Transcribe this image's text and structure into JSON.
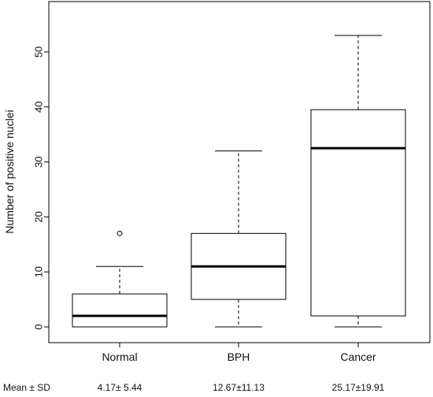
{
  "chart_data": {
    "type": "boxplot",
    "title": "",
    "xlabel": "",
    "ylabel": "Number of positive nuclei",
    "ylim": [
      -2,
      55
    ],
    "yticks": [
      0,
      10,
      20,
      30,
      40,
      50
    ],
    "grid": false,
    "legend": "none",
    "categories": [
      "Normal",
      "BPH",
      "Cancer"
    ],
    "boxes": [
      {
        "category": "Normal",
        "whisker_low": 0,
        "q1": 0,
        "median": 2,
        "q3": 6,
        "whisker_high": 11,
        "outliers": [
          17
        ]
      },
      {
        "category": "BPH",
        "whisker_low": 0,
        "q1": 5,
        "median": 11,
        "q3": 17,
        "whisker_high": 32,
        "outliers": []
      },
      {
        "category": "Cancer",
        "whisker_low": 0,
        "q1": 2,
        "median": 32.5,
        "q3": 39.5,
        "whisker_high": 53,
        "outliers": []
      }
    ],
    "summary_row": {
      "label": "Mean ± SD",
      "values": [
        "4.17± 5.44",
        "12.67±11.13",
        "25.17±19.91"
      ]
    }
  },
  "colors": {
    "stroke": "#000000",
    "background": "#ffffff"
  }
}
